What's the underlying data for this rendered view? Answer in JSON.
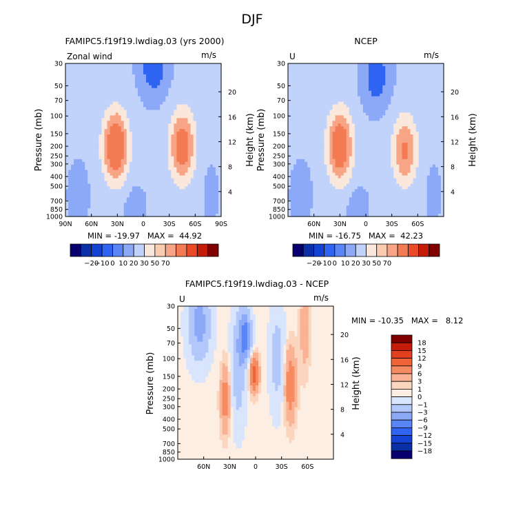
{
  "figure_title": "DJF",
  "colors": {
    "panel_scale_12": [
      "#08006e",
      "#0a2fa6",
      "#1443d3",
      "#2f64f2",
      "#5985f7",
      "#8ca9f8",
      "#c1d3fb",
      "#fbe8dc",
      "#fbcbb1",
      "#f8a587",
      "#f37b53",
      "#ea4a28",
      "#c51c0a",
      "#800000"
    ],
    "diff_scale_16": [
      "#08006e",
      "#0a2fa6",
      "#1443d3",
      "#2f64f2",
      "#5985f7",
      "#8ca9f8",
      "#b3c8fa",
      "#d8e5fc",
      "#fdeee4",
      "#fcd5bf",
      "#f9b294",
      "#f68b62",
      "#ef6437",
      "#e23f1e",
      "#c51c0a",
      "#800000"
    ]
  },
  "chart_data": [
    {
      "type": "heatmap",
      "title": "FAMIPC5.f19f19.lwdiag.03 (yrs 2000)",
      "subtitle_left": "Zonal wind",
      "units": "m/s",
      "xlabel": "",
      "ylabel": "Pressure (mb)",
      "ylabel_right": "Height (km)",
      "x_range": [
        90,
        -90
      ],
      "x_ticks": [
        90,
        60,
        30,
        0,
        -30,
        -60,
        -90
      ],
      "x_tick_labels": [
        "90N",
        "60N",
        "30N",
        "0",
        "30S",
        "60S",
        "90S"
      ],
      "y_ticks": [
        30,
        50,
        70,
        100,
        150,
        200,
        250,
        300,
        400,
        500,
        700,
        850,
        1000
      ],
      "y_tick_labels": [
        "30",
        "50",
        "70",
        "100",
        "150",
        "200",
        "250",
        "300",
        "400",
        "500",
        "700",
        "850",
        "1000"
      ],
      "y_range": [
        1000,
        30
      ],
      "height_ticks": [
        4,
        8,
        12,
        16,
        20
      ],
      "stats": "MIN = -19.97   MAX =  44.92",
      "min": -19.97,
      "max": 44.92,
      "levels": [
        -20,
        -10,
        0,
        10,
        20,
        30,
        50,
        70
      ],
      "jets": [
        {
          "lat": 32,
          "pressure": 200,
          "speed": 44.9
        },
        {
          "lat": -45,
          "pressure": 200,
          "speed": 38
        }
      ],
      "easterly_min": {
        "lat": -12,
        "pressure": 30,
        "speed": -19.97
      }
    },
    {
      "type": "heatmap",
      "title": "NCEP",
      "subtitle_left": "U",
      "units": "m/s",
      "xlabel": "",
      "ylabel": "Pressure (mb)",
      "ylabel_right": "Height (km)",
      "x_range": [
        90,
        -90
      ],
      "x_ticks": [
        60,
        30,
        0,
        -30,
        -60
      ],
      "x_tick_labels": [
        "60N",
        "30N",
        "0",
        "30S",
        "60S"
      ],
      "y_ticks": [
        30,
        50,
        70,
        100,
        150,
        200,
        250,
        300,
        400,
        500,
        700,
        850,
        1000
      ],
      "y_tick_labels": [
        "30",
        "50",
        "70",
        "100",
        "150",
        "200",
        "250",
        "300",
        "400",
        "500",
        "700",
        "850",
        "1000"
      ],
      "y_range": [
        1000,
        30
      ],
      "height_ticks": [
        4,
        8,
        12,
        16,
        20
      ],
      "stats": "MIN = -16.75   MAX =  42.23",
      "min": -16.75,
      "max": 42.23,
      "levels": [
        -20,
        -10,
        0,
        10,
        20,
        30,
        50,
        70
      ],
      "jets": [
        {
          "lat": 30,
          "pressure": 200,
          "speed": 42.2
        },
        {
          "lat": -45,
          "pressure": 220,
          "speed": 30
        }
      ],
      "easterly_min": {
        "lat": -12,
        "pressure": 40,
        "speed": -16.75
      }
    },
    {
      "type": "heatmap",
      "title": "FAMIPC5.f19f19.lwdiag.03 - NCEP",
      "subtitle_left": "U",
      "units": "m/s",
      "xlabel": "",
      "ylabel": "Pressure (mb)",
      "ylabel_right": "Height (km)",
      "x_range": [
        90,
        -90
      ],
      "x_ticks": [
        60,
        30,
        0,
        -30,
        -60
      ],
      "x_tick_labels": [
        "60N",
        "30N",
        "0",
        "30S",
        "60S"
      ],
      "y_ticks": [
        30,
        50,
        70,
        100,
        150,
        200,
        250,
        300,
        400,
        500,
        700,
        850,
        1000
      ],
      "y_tick_labels": [
        "30",
        "50",
        "70",
        "100",
        "150",
        "200",
        "250",
        "300",
        "400",
        "500",
        "700",
        "850",
        "1000"
      ],
      "y_range": [
        1000,
        30
      ],
      "height_ticks": [
        4,
        8,
        12,
        16,
        20
      ],
      "stats": "MIN = -10.35   MAX =   8.12",
      "min": -10.35,
      "max": 8.12,
      "levels": [
        -18,
        -15,
        -12,
        -9,
        -6,
        -3,
        -1,
        0,
        1,
        3,
        6,
        9,
        12,
        15,
        18
      ],
      "level_labels": [
        "18",
        "15",
        "12",
        "9",
        "6",
        "3",
        "1",
        "0",
        "−1",
        "−3",
        "−6",
        "−9",
        "−12",
        "−15",
        "−18"
      ]
    }
  ],
  "colorbar_panel_labels": [
    "−20",
    "−10",
    "0",
    "10",
    "20",
    "30",
    "50",
    "70"
  ]
}
